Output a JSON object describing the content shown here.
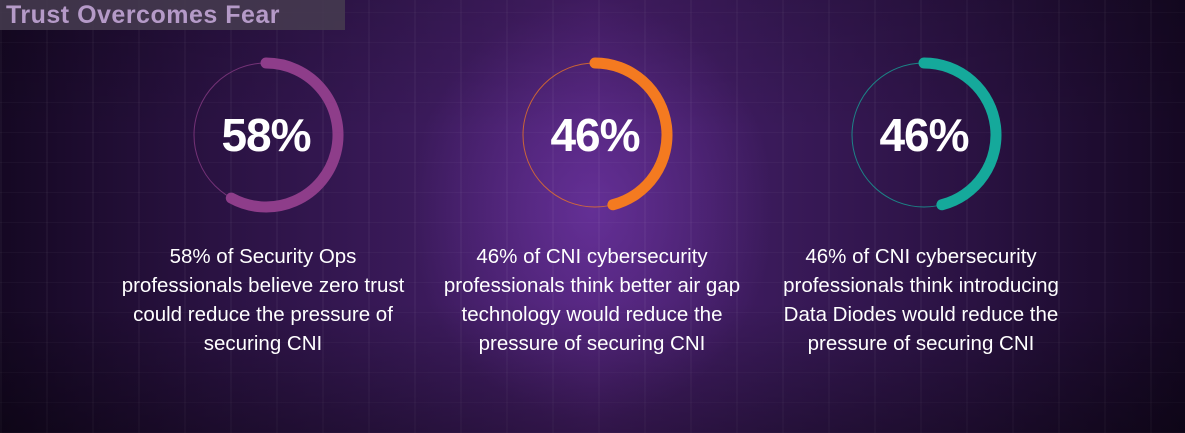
{
  "header": {
    "title": "Trust Overcomes Fear"
  },
  "chart_data": [
    {
      "type": "pie",
      "value": 58,
      "label": "58%",
      "color": "#8e3d8a",
      "caption": "58% of Security Ops professionals believe zero trust could reduce the pressure of securing CNI"
    },
    {
      "type": "pie",
      "value": 46,
      "label": "46%",
      "color": "#f47a20",
      "caption": "46% of CNI cybersecurity professionals think better air gap technology would reduce the pressure of securing CNI"
    },
    {
      "type": "pie",
      "value": 46,
      "label": "46%",
      "color": "#15a99b",
      "caption": "46% of CNI cybersecurity professionals think introducing Data Diodes would reduce the pressure of securing CNI"
    }
  ]
}
